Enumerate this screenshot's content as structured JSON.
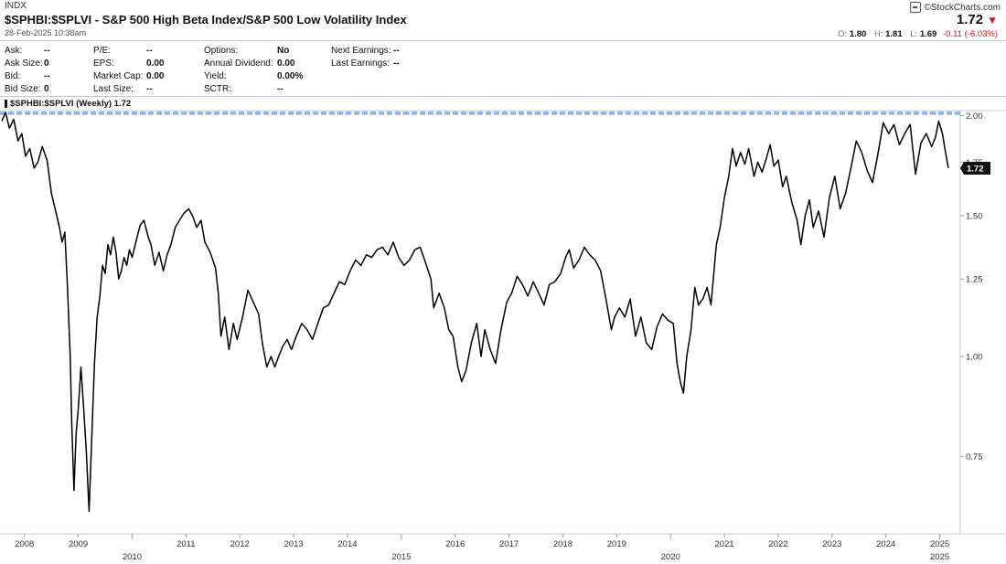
{
  "header": {
    "exchange": "INDX",
    "title": "$SPHBI:$SPLVI - S&P 500 High Beta Index/S&P 500 Low Volatility Index",
    "datetime": "28-Feb-2025 10:38am",
    "logo_text": "©StockCharts.com",
    "last_price": "1.72",
    "down_arrow": "▼",
    "open_label": "O:",
    "open": "1.80",
    "high_label": "H:",
    "high": "1.81",
    "low_label": "L:",
    "low": "1.69",
    "change": "-0.11 (-6.03%)",
    "colors": {
      "down": "#e0131b",
      "price_line": "#000000",
      "reference_line": "#5b8fd6"
    }
  },
  "quote_table": {
    "col1": [
      {
        "label": "Ask:",
        "value": "--"
      },
      {
        "label": "Ask Size:",
        "value": "0"
      },
      {
        "label": "Bid:",
        "value": "--"
      },
      {
        "label": "Bid Size:",
        "value": "0"
      }
    ],
    "col2": [
      {
        "label": "P/E:",
        "value": "--"
      },
      {
        "label": "EPS:",
        "value": "0.00"
      },
      {
        "label": "Market Cap:",
        "value": "0.00"
      },
      {
        "label": "Last Size:",
        "value": "--"
      }
    ],
    "col3": [
      {
        "label": "Options:",
        "value": "No"
      },
      {
        "label": "Annual Dividend:",
        "value": "0.00"
      },
      {
        "label": "Yield:",
        "value": "0.00%"
      },
      {
        "label": "SCTR:",
        "value": "--"
      }
    ],
    "col4": [
      {
        "label": "Next Earnings:",
        "value": "--"
      },
      {
        "label": "Last Earnings:",
        "value": "--"
      }
    ]
  },
  "chart_data": {
    "type": "line",
    "panel_label": "$SPHBI:$SPLVI (Weekly) 1.72",
    "xlabel": "",
    "ylabel": "",
    "y_scale": "log",
    "ylim": [
      0.6,
      2.03
    ],
    "y_ticks": [
      "2.00",
      "1.75",
      "1.50",
      "1.25",
      "1.00",
      "0.75"
    ],
    "last_value_label": "1.72",
    "reference_levels": [
      2.01,
      2.02
    ],
    "x_year_labels": [
      "2008",
      "2009",
      "2011",
      "2012",
      "2013",
      "2014",
      "2016",
      "2017",
      "2018",
      "2019",
      "2021",
      "2022",
      "2023",
      "2024",
      "2025"
    ],
    "x_major_labels": [
      "2010",
      "2015",
      "2020",
      "2025"
    ],
    "series": [
      {
        "name": "$SPHBI:$SPLVI",
        "points": [
          [
            2007.58,
            1.97
          ],
          [
            2007.65,
            2.02
          ],
          [
            2007.72,
            1.93
          ],
          [
            2007.8,
            1.98
          ],
          [
            2007.88,
            1.86
          ],
          [
            2007.95,
            1.9
          ],
          [
            2008.02,
            1.78
          ],
          [
            2008.1,
            1.82
          ],
          [
            2008.18,
            1.72
          ],
          [
            2008.25,
            1.75
          ],
          [
            2008.33,
            1.83
          ],
          [
            2008.42,
            1.76
          ],
          [
            2008.5,
            1.6
          ],
          [
            2008.58,
            1.52
          ],
          [
            2008.65,
            1.45
          ],
          [
            2008.7,
            1.39
          ],
          [
            2008.75,
            1.43
          ],
          [
            2008.8,
            1.22
          ],
          [
            2008.85,
            1.0
          ],
          [
            2008.88,
            0.82
          ],
          [
            2008.92,
            0.68
          ],
          [
            2008.96,
            0.8
          ],
          [
            2009.0,
            0.86
          ],
          [
            2009.05,
            0.97
          ],
          [
            2009.1,
            0.86
          ],
          [
            2009.15,
            0.76
          ],
          [
            2009.2,
            0.64
          ],
          [
            2009.25,
            0.79
          ],
          [
            2009.3,
            0.98
          ],
          [
            2009.35,
            1.12
          ],
          [
            2009.4,
            1.19
          ],
          [
            2009.45,
            1.3
          ],
          [
            2009.5,
            1.27
          ],
          [
            2009.55,
            1.38
          ],
          [
            2009.6,
            1.34
          ],
          [
            2009.65,
            1.41
          ],
          [
            2009.7,
            1.35
          ],
          [
            2009.75,
            1.25
          ],
          [
            2009.8,
            1.28
          ],
          [
            2009.85,
            1.33
          ],
          [
            2009.9,
            1.3
          ],
          [
            2009.95,
            1.36
          ],
          [
            2010.0,
            1.33
          ],
          [
            2010.08,
            1.4
          ],
          [
            2010.15,
            1.46
          ],
          [
            2010.22,
            1.48
          ],
          [
            2010.3,
            1.41
          ],
          [
            2010.35,
            1.38
          ],
          [
            2010.42,
            1.3
          ],
          [
            2010.5,
            1.35
          ],
          [
            2010.58,
            1.28
          ],
          [
            2010.65,
            1.34
          ],
          [
            2010.72,
            1.38
          ],
          [
            2010.8,
            1.45
          ],
          [
            2010.88,
            1.48
          ],
          [
            2010.96,
            1.51
          ],
          [
            2011.05,
            1.53
          ],
          [
            2011.12,
            1.5
          ],
          [
            2011.2,
            1.45
          ],
          [
            2011.28,
            1.48
          ],
          [
            2011.35,
            1.39
          ],
          [
            2011.45,
            1.35
          ],
          [
            2011.55,
            1.29
          ],
          [
            2011.6,
            1.2
          ],
          [
            2011.65,
            1.06
          ],
          [
            2011.72,
            1.12
          ],
          [
            2011.8,
            1.02
          ],
          [
            2011.88,
            1.1
          ],
          [
            2011.95,
            1.05
          ],
          [
            2012.05,
            1.12
          ],
          [
            2012.15,
            1.21
          ],
          [
            2012.25,
            1.17
          ],
          [
            2012.35,
            1.13
          ],
          [
            2012.42,
            1.04
          ],
          [
            2012.5,
            0.97
          ],
          [
            2012.58,
            1.0
          ],
          [
            2012.65,
            0.97
          ],
          [
            2012.72,
            1.0
          ],
          [
            2012.8,
            1.03
          ],
          [
            2012.88,
            1.05
          ],
          [
            2012.96,
            1.02
          ],
          [
            2013.05,
            1.06
          ],
          [
            2013.15,
            1.1
          ],
          [
            2013.25,
            1.08
          ],
          [
            2013.35,
            1.05
          ],
          [
            2013.45,
            1.1
          ],
          [
            2013.55,
            1.15
          ],
          [
            2013.65,
            1.16
          ],
          [
            2013.75,
            1.2
          ],
          [
            2013.85,
            1.24
          ],
          [
            2013.95,
            1.23
          ],
          [
            2014.05,
            1.28
          ],
          [
            2014.15,
            1.32
          ],
          [
            2014.25,
            1.3
          ],
          [
            2014.35,
            1.34
          ],
          [
            2014.45,
            1.33
          ],
          [
            2014.55,
            1.36
          ],
          [
            2014.65,
            1.37
          ],
          [
            2014.75,
            1.34
          ],
          [
            2014.85,
            1.39
          ],
          [
            2014.95,
            1.33
          ],
          [
            2015.05,
            1.3
          ],
          [
            2015.15,
            1.32
          ],
          [
            2015.25,
            1.36
          ],
          [
            2015.35,
            1.37
          ],
          [
            2015.45,
            1.31
          ],
          [
            2015.55,
            1.25
          ],
          [
            2015.6,
            1.15
          ],
          [
            2015.7,
            1.2
          ],
          [
            2015.8,
            1.15
          ],
          [
            2015.88,
            1.08
          ],
          [
            2015.96,
            1.06
          ],
          [
            2016.05,
            0.97
          ],
          [
            2016.12,
            0.93
          ],
          [
            2016.2,
            0.96
          ],
          [
            2016.3,
            1.04
          ],
          [
            2016.4,
            1.1
          ],
          [
            2016.48,
            1.0
          ],
          [
            2016.55,
            1.08
          ],
          [
            2016.65,
            1.02
          ],
          [
            2016.75,
            0.98
          ],
          [
            2016.85,
            1.08
          ],
          [
            2016.96,
            1.17
          ],
          [
            2017.05,
            1.2
          ],
          [
            2017.15,
            1.26
          ],
          [
            2017.25,
            1.23
          ],
          [
            2017.35,
            1.19
          ],
          [
            2017.45,
            1.24
          ],
          [
            2017.55,
            1.2
          ],
          [
            2017.65,
            1.16
          ],
          [
            2017.75,
            1.23
          ],
          [
            2017.85,
            1.24
          ],
          [
            2017.96,
            1.27
          ],
          [
            2018.05,
            1.33
          ],
          [
            2018.12,
            1.36
          ],
          [
            2018.2,
            1.29
          ],
          [
            2018.3,
            1.32
          ],
          [
            2018.4,
            1.37
          ],
          [
            2018.5,
            1.34
          ],
          [
            2018.6,
            1.32
          ],
          [
            2018.7,
            1.28
          ],
          [
            2018.8,
            1.18
          ],
          [
            2018.9,
            1.08
          ],
          [
            2018.96,
            1.12
          ],
          [
            2019.05,
            1.15
          ],
          [
            2019.15,
            1.12
          ],
          [
            2019.25,
            1.18
          ],
          [
            2019.35,
            1.06
          ],
          [
            2019.45,
            1.12
          ],
          [
            2019.55,
            1.04
          ],
          [
            2019.65,
            1.02
          ],
          [
            2019.75,
            1.09
          ],
          [
            2019.85,
            1.13
          ],
          [
            2019.95,
            1.11
          ],
          [
            2020.05,
            1.1
          ],
          [
            2020.12,
            0.98
          ],
          [
            2020.18,
            0.93
          ],
          [
            2020.24,
            0.9
          ],
          [
            2020.3,
            1.0
          ],
          [
            2020.38,
            1.08
          ],
          [
            2020.45,
            1.22
          ],
          [
            2020.52,
            1.16
          ],
          [
            2020.6,
            1.18
          ],
          [
            2020.68,
            1.22
          ],
          [
            2020.75,
            1.16
          ],
          [
            2020.85,
            1.38
          ],
          [
            2020.92,
            1.45
          ],
          [
            2021.0,
            1.58
          ],
          [
            2021.08,
            1.68
          ],
          [
            2021.15,
            1.82
          ],
          [
            2021.22,
            1.73
          ],
          [
            2021.3,
            1.8
          ],
          [
            2021.38,
            1.74
          ],
          [
            2021.45,
            1.82
          ],
          [
            2021.55,
            1.68
          ],
          [
            2021.62,
            1.75
          ],
          [
            2021.7,
            1.7
          ],
          [
            2021.78,
            1.77
          ],
          [
            2021.85,
            1.84
          ],
          [
            2021.92,
            1.73
          ],
          [
            2022.0,
            1.76
          ],
          [
            2022.08,
            1.63
          ],
          [
            2022.15,
            1.68
          ],
          [
            2022.25,
            1.56
          ],
          [
            2022.35,
            1.48
          ],
          [
            2022.42,
            1.38
          ],
          [
            2022.5,
            1.5
          ],
          [
            2022.58,
            1.57
          ],
          [
            2022.65,
            1.45
          ],
          [
            2022.75,
            1.52
          ],
          [
            2022.85,
            1.41
          ],
          [
            2022.95,
            1.58
          ],
          [
            2023.05,
            1.68
          ],
          [
            2023.15,
            1.53
          ],
          [
            2023.25,
            1.6
          ],
          [
            2023.35,
            1.72
          ],
          [
            2023.45,
            1.86
          ],
          [
            2023.55,
            1.8
          ],
          [
            2023.65,
            1.71
          ],
          [
            2023.75,
            1.65
          ],
          [
            2023.85,
            1.79
          ],
          [
            2023.95,
            1.96
          ],
          [
            2024.05,
            1.9
          ],
          [
            2024.15,
            1.95
          ],
          [
            2024.25,
            1.84
          ],
          [
            2024.35,
            1.9
          ],
          [
            2024.45,
            1.95
          ],
          [
            2024.55,
            1.69
          ],
          [
            2024.65,
            1.85
          ],
          [
            2024.75,
            1.9
          ],
          [
            2024.85,
            1.83
          ],
          [
            2024.92,
            1.88
          ],
          [
            2024.98,
            1.97
          ],
          [
            2025.05,
            1.9
          ],
          [
            2025.1,
            1.81
          ],
          [
            2025.16,
            1.72
          ]
        ]
      }
    ]
  }
}
